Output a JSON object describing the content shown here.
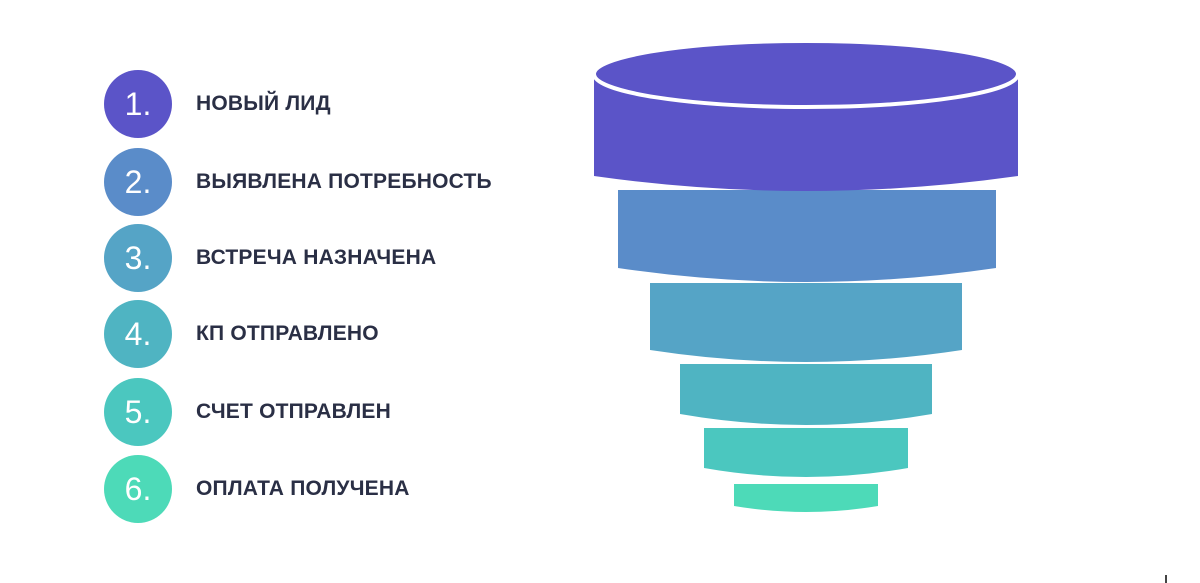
{
  "stages": [
    {
      "number": "1.",
      "label": "НОВЫЙ ЛИД",
      "color": "#5b54c8"
    },
    {
      "number": "2.",
      "label": "ВЫЯВЛЕНА ПОТРЕБНОСТЬ",
      "color": "#5a8cc9"
    },
    {
      "number": "3.",
      "label": "ВСТРЕЧА НАЗНАЧЕНА",
      "color": "#55a4c6"
    },
    {
      "number": "4.",
      "label": "КП ОТПРАВЛЕНО",
      "color": "#4fb4c2"
    },
    {
      "number": "5.",
      "label": "СЧЕТ ОТПРАВЛЕН",
      "color": "#4bc7bf"
    },
    {
      "number": "6.",
      "label": "ОПЛАТА ПОЛУЧЕНА",
      "color": "#4ddab8"
    }
  ],
  "funnel": {
    "top_color": "#5b54c8",
    "segment_colors": [
      "#5b54c8",
      "#5a8cc9",
      "#55a4c6",
      "#4fb4c2",
      "#4bc7bf",
      "#4ddab8"
    ]
  }
}
